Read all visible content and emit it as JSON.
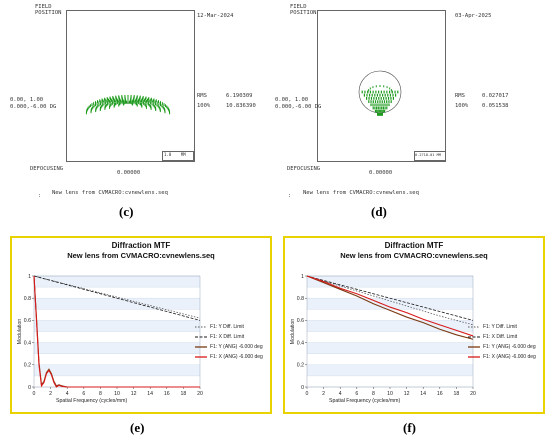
{
  "spot_diagrams": [
    {
      "id": "c",
      "field_position_label": "FIELD\nPOSITION",
      "date": "12-Mar-2024",
      "position_line1": "0.00, 1.00",
      "position_line2": "0.000,-6.00 DG",
      "rms_label": "RMS",
      "rms_value": "6.190309",
      "pct_label": "100%",
      "pct_value": "10.836390",
      "defocusing_label": "DEFOCUSING",
      "defocusing_value": "0.00000",
      "scale_label": "1.0    MM",
      "lens_label": "New lens from CVMACRO:cvnewlens.seq",
      "caption": "(c)",
      "spot_color": "#1f9b1f"
    },
    {
      "id": "d",
      "field_position_label": "FIELD\nPOSITION",
      "date": "03-Apr-2025",
      "position_line1": "0.00, 1.00",
      "position_line2": "0.000,-6.00 DG",
      "rms_label": "RMS",
      "rms_value": "0.027017",
      "pct_label": "100%",
      "pct_value": "0.051538",
      "defocusing_label": "DEFOCUSING",
      "defocusing_value": "0.00000",
      "scale_label": "0.2718-01 MM",
      "lens_label": "New lens from CVMACRO:cvnewlens.seq",
      "caption": "(d)",
      "spot_color": "#1f9b1f"
    }
  ],
  "chart_data": [
    {
      "type": "line",
      "id": "e",
      "title": "Diffraction MTF",
      "subtitle": "New lens from CVMACRO:cvnewlens.seq",
      "xlabel": "Spatial Frequency (cycles/mm)",
      "ylabel": "Modulation",
      "xlim": [
        0,
        20
      ],
      "ylim": [
        0,
        1
      ],
      "x_ticks": [
        "0",
        "2",
        "4",
        "6",
        "8",
        "10",
        "12",
        "14",
        "16",
        "18",
        "20"
      ],
      "y_ticks": [
        "0",
        "0.2",
        "0.4",
        "0.6",
        "0.8",
        "1"
      ],
      "grid": true,
      "legend_position": "right",
      "caption": "(e)",
      "series": [
        {
          "name": "F1: Y Diff. Limit",
          "color": "#5a5a5a",
          "dash": "1.5,1.5",
          "x": [
            0,
            2,
            4,
            6,
            8,
            10,
            12,
            14,
            16,
            18,
            20
          ],
          "y": [
            1.0,
            0.962,
            0.924,
            0.886,
            0.848,
            0.81,
            0.772,
            0.734,
            0.696,
            0.658,
            0.62
          ]
        },
        {
          "name": "F1: X Diff. Limit",
          "color": "#1a1a1a",
          "dash": "3,1.5",
          "x": [
            0,
            2,
            4,
            6,
            8,
            10,
            12,
            14,
            16,
            18,
            20
          ],
          "y": [
            1.0,
            0.96,
            0.92,
            0.88,
            0.84,
            0.8,
            0.76,
            0.72,
            0.68,
            0.64,
            0.6
          ]
        },
        {
          "name": "F1: Y (ANG) -6.000 deg",
          "color": "#7a3a12",
          "dash": "",
          "x": [
            0,
            0.3,
            0.6,
            0.9,
            1.2,
            1.5,
            1.8,
            2.1,
            2.4,
            2.7,
            3.0,
            3.4,
            4,
            6,
            20
          ],
          "y": [
            1.0,
            0.62,
            0.22,
            0.02,
            0.05,
            0.13,
            0.16,
            0.12,
            0.05,
            0.01,
            0.02,
            0.01,
            0.0,
            0.0,
            0.0
          ]
        },
        {
          "name": "F1: X (ANG) -6.000 deg",
          "color": "#d81a1a",
          "dash": "",
          "x": [
            0,
            0.3,
            0.6,
            0.9,
            1.2,
            1.5,
            1.8,
            2.1,
            2.4,
            2.7,
            3.0,
            3.4,
            4,
            6,
            20
          ],
          "y": [
            1.0,
            0.6,
            0.2,
            0.01,
            0.04,
            0.12,
            0.15,
            0.11,
            0.04,
            0.0,
            0.015,
            0.005,
            0.0,
            0.0,
            0.0
          ]
        }
      ]
    },
    {
      "type": "line",
      "id": "f",
      "title": "Diffraction MTF",
      "subtitle": "New lens from CVMACRO:cvnewlens.seq",
      "xlabel": "Spatial Frequency (cycles/mm)",
      "ylabel": "Modulation",
      "xlim": [
        0,
        20
      ],
      "ylim": [
        0,
        1
      ],
      "x_ticks": [
        "0",
        "2",
        "4",
        "6",
        "8",
        "10",
        "12",
        "14",
        "16",
        "18",
        "20"
      ],
      "y_ticks": [
        "0",
        "0.2",
        "0.4",
        "0.6",
        "0.8",
        "1"
      ],
      "grid": true,
      "legend_position": "right",
      "caption": "(f)",
      "series": [
        {
          "name": "F1: Y Diff. Limit",
          "color": "#5a5a5a",
          "dash": "1.5,1.5",
          "x": [
            0,
            2,
            4,
            6,
            8,
            10,
            12,
            14,
            16,
            18,
            20
          ],
          "y": [
            1.0,
            0.955,
            0.91,
            0.865,
            0.82,
            0.775,
            0.73,
            0.685,
            0.64,
            0.6,
            0.56
          ]
        },
        {
          "name": "F1: X Diff. Limit",
          "color": "#1a1a1a",
          "dash": "3,1.5",
          "x": [
            0,
            2,
            4,
            6,
            8,
            10,
            12,
            14,
            16,
            18,
            20
          ],
          "y": [
            1.0,
            0.96,
            0.92,
            0.88,
            0.84,
            0.8,
            0.76,
            0.72,
            0.68,
            0.64,
            0.6
          ]
        },
        {
          "name": "F1: Y (ANG) -6.000 deg",
          "color": "#7a3a12",
          "dash": "",
          "x": [
            0,
            2,
            4,
            6,
            8,
            10,
            12,
            14,
            16,
            18,
            20
          ],
          "y": [
            1.0,
            0.94,
            0.88,
            0.82,
            0.75,
            0.69,
            0.63,
            0.58,
            0.52,
            0.47,
            0.43
          ]
        },
        {
          "name": "F1: X (ANG) -6.000 deg",
          "color": "#d81a1a",
          "dash": "",
          "x": [
            0,
            2,
            4,
            6,
            8,
            10,
            12,
            14,
            16,
            18,
            20
          ],
          "y": [
            1.0,
            0.95,
            0.89,
            0.84,
            0.78,
            0.72,
            0.67,
            0.61,
            0.56,
            0.51,
            0.46
          ]
        }
      ]
    }
  ]
}
